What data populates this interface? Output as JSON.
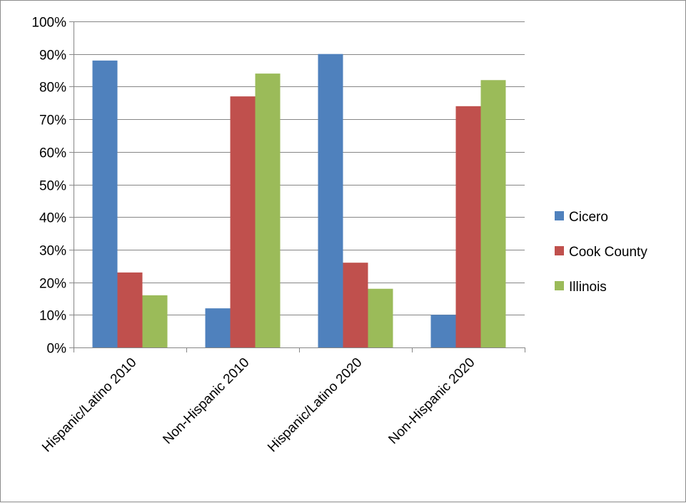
{
  "chart_data": {
    "type": "bar",
    "categories": [
      "Hispanic/Latino 2010",
      "Non-Hispanic 2010",
      "Hispanic/Latino 2020",
      "Non-Hispanic 2020"
    ],
    "series": [
      {
        "name": "Cicero",
        "color": "#4f81bd",
        "values": [
          88,
          12,
          90,
          10
        ]
      },
      {
        "name": "Cook County",
        "color": "#c0504d",
        "values": [
          23,
          77,
          26,
          74
        ]
      },
      {
        "name": "Illinois",
        "color": "#9bbb59",
        "values": [
          16,
          84,
          18,
          82
        ]
      }
    ],
    "ylim": [
      0,
      100
    ],
    "yticks": [
      0,
      10,
      20,
      30,
      40,
      50,
      60,
      70,
      80,
      90,
      100
    ],
    "ytick_labels": [
      "0%",
      "10%",
      "20%",
      "30%",
      "40%",
      "50%",
      "60%",
      "70%",
      "80%",
      "90%",
      "100%"
    ],
    "grid": true,
    "legend_position": "right",
    "axis_color": "#868686",
    "grid_color": "#868686"
  }
}
